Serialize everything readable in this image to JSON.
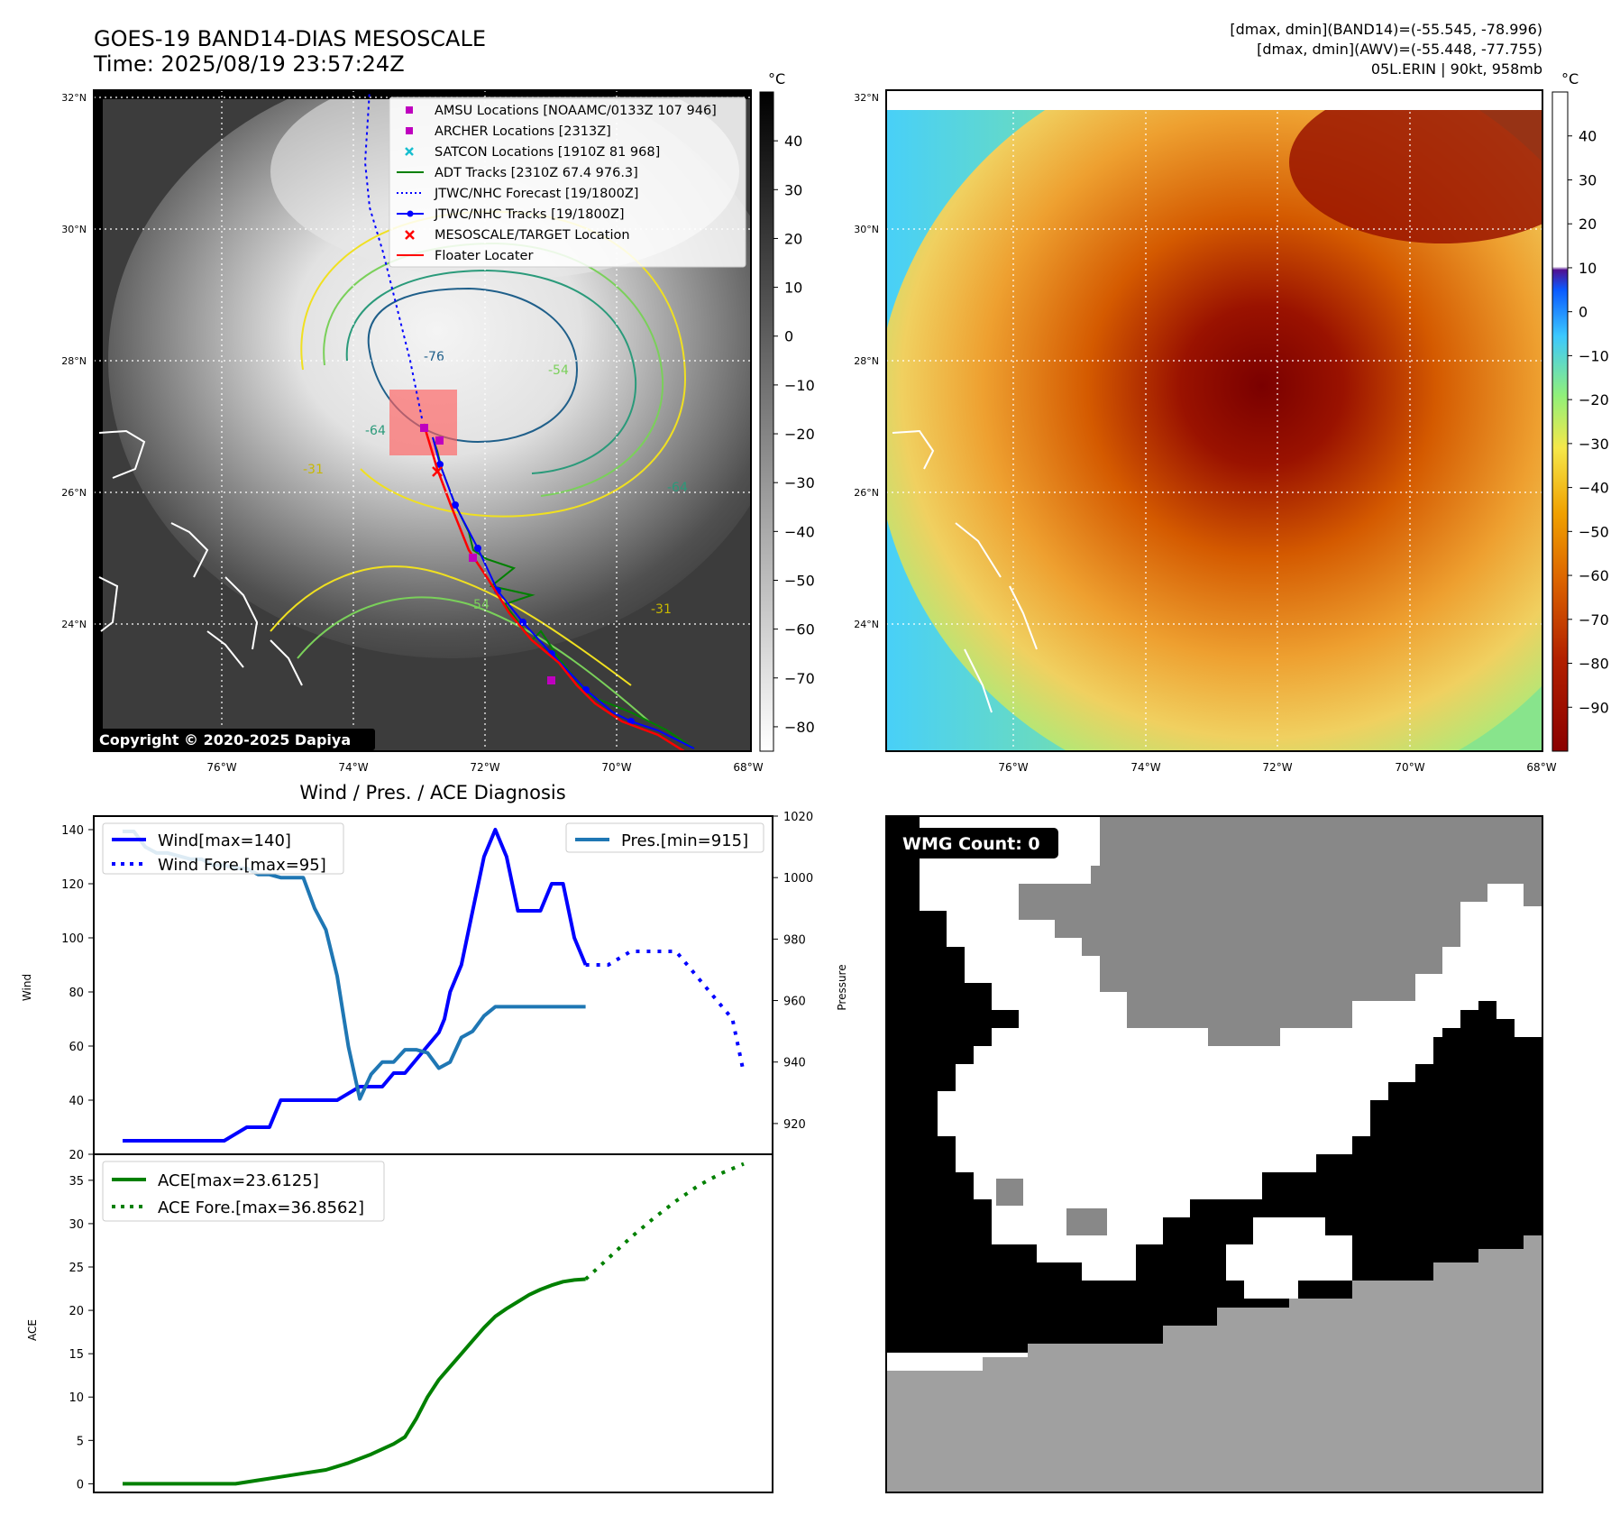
{
  "header": {
    "title_line1": "GOES-19 BAND14-DIAS MESOSCALE",
    "title_line2": "Time: 2025/08/19 23:57:24Z",
    "info_line1": "[dmax, dmin](BAND14)=(-55.545, -78.996)",
    "info_line2": "[dmax, dmin](AWV)=(-55.448, -77.755)",
    "info_line3": "05L.ERIN | 90kt, 958mb"
  },
  "map": {
    "lat_labels": [
      "32°N",
      "30°N",
      "28°N",
      "26°N",
      "24°N"
    ],
    "lon_labels": [
      "76°W",
      "74°W",
      "72°W",
      "70°W",
      "68°W"
    ],
    "copyright": "Copyright © 2020-2025 Dapiya",
    "contour_labels": [
      "-76",
      "-64",
      "-54",
      "-54",
      "-64",
      "-31",
      "-31",
      "-54",
      "-31"
    ],
    "legend": [
      {
        "label": "AMSU Locations [NOAAMC/0133Z 107 946]",
        "marker": "square",
        "color": "#bf00bf"
      },
      {
        "label": "ARCHER Locations [2313Z]",
        "marker": "square",
        "color": "#bf00bf"
      },
      {
        "label": "SATCON Locations [1910Z 81 968]",
        "marker": "x",
        "color": "#17becf"
      },
      {
        "label": "ADT Tracks [2310Z 67.4 976.3]",
        "marker": "line",
        "color": "#008000"
      },
      {
        "label": "JTWC/NHC Forecast [19/1800Z]",
        "marker": "dotted",
        "color": "#0000ff"
      },
      {
        "label": "JTWC/NHC Tracks [19/1800Z]",
        "marker": "line-dot",
        "color": "#0000ff"
      },
      {
        "label": "MESOSCALE/TARGET Location",
        "marker": "x",
        "color": "#ff0000"
      },
      {
        "label": "Floater Locater",
        "marker": "line",
        "color": "#ff0000"
      }
    ]
  },
  "colorbar_left": {
    "unit": "°C",
    "ticks": [
      "40",
      "30",
      "20",
      "10",
      "0",
      "−10",
      "−20",
      "−30",
      "−40",
      "−50",
      "−60",
      "−70",
      "−80"
    ]
  },
  "colorbar_right": {
    "unit": "°C",
    "ticks": [
      "40",
      "30",
      "20",
      "10",
      "0",
      "−10",
      "−20",
      "−30",
      "−40",
      "−50",
      "−60",
      "−70",
      "−80",
      "−90"
    ]
  },
  "wmg": {
    "label": "WMG Count: 0"
  },
  "chart_data": [
    {
      "type": "line",
      "title": "Wind / Pres. / ACE Diagnosis",
      "ylabel": "Wind",
      "ylabel_right": "Pressure",
      "ylim": [
        20,
        145
      ],
      "ylim_right": [
        910,
        1020
      ],
      "y_ticks": [
        "20",
        "40",
        "60",
        "80",
        "100",
        "120",
        "140"
      ],
      "y_ticks_right": [
        "920",
        "940",
        "960",
        "980",
        "1000",
        "1020"
      ],
      "legend_left": [
        "Wind[max=140]",
        "Wind Fore.[max=95]"
      ],
      "legend_right": [
        "Pres.[min=915]"
      ],
      "series": [
        {
          "name": "Wind[max=140]",
          "color": "#0000ff",
          "style": "solid",
          "axis": "left",
          "x": [
            0,
            9,
            11,
            13,
            13.5,
            14,
            16,
            17,
            19,
            21,
            22,
            23,
            24,
            25,
            26,
            27,
            28,
            28.5,
            29,
            30,
            31,
            32,
            33,
            34,
            35,
            36,
            37,
            38,
            39,
            40,
            41
          ],
          "values": [
            25,
            25,
            30,
            30,
            35,
            40,
            40,
            40,
            40,
            45,
            45,
            45,
            50,
            50,
            55,
            60,
            65,
            70,
            80,
            90,
            110,
            130,
            140,
            130,
            110,
            110,
            110,
            120,
            120,
            100,
            90
          ]
        },
        {
          "name": "Wind Fore.[max=95]",
          "color": "#0000ff",
          "style": "dotted",
          "axis": "left",
          "x": [
            41,
            43,
            45,
            47,
            49,
            50,
            51,
            52,
            53,
            54,
            55
          ],
          "values": [
            90,
            90,
            95,
            95,
            95,
            90,
            85,
            80,
            75,
            70,
            50
          ]
        },
        {
          "name": "Pres.[min=915]",
          "color": "#1f77b4",
          "style": "solid",
          "axis": "right",
          "x": [
            0,
            1,
            2,
            3,
            4,
            5,
            6,
            7,
            8,
            9,
            10,
            11,
            12,
            13,
            14,
            15,
            16,
            17,
            18,
            19,
            20,
            21,
            22,
            23,
            24,
            25,
            26,
            27,
            28,
            29,
            30,
            31,
            32,
            33,
            34,
            35,
            36,
            37,
            38,
            39,
            40,
            41
          ],
          "values": [
            1015,
            1015,
            1010,
            1008,
            1008,
            1007,
            1006,
            1006,
            1004,
            1004,
            1003,
            1003,
            1001,
            1001,
            1000,
            1000,
            1000,
            990,
            983,
            968,
            945,
            928,
            936,
            940,
            940,
            944,
            944,
            943,
            938,
            940,
            948,
            950,
            955,
            958,
            958,
            958,
            958,
            958,
            958,
            958,
            958,
            958
          ]
        }
      ]
    },
    {
      "type": "line",
      "ylabel": "ACE",
      "ylim": [
        -1,
        38
      ],
      "y_ticks": [
        "0",
        "5",
        "10",
        "15",
        "20",
        "25",
        "30",
        "35"
      ],
      "legend": [
        "ACE[max=23.6125]",
        "ACE Fore.[max=36.8562]"
      ],
      "series": [
        {
          "name": "ACE[max=23.6125]",
          "color": "#008000",
          "style": "solid",
          "x": [
            0,
            10,
            12,
            14,
            16,
            18,
            19,
            20,
            21,
            22,
            23,
            24,
            25,
            26,
            27,
            28,
            29,
            30,
            31,
            32,
            33,
            34,
            35,
            36,
            37,
            38,
            39,
            40,
            41
          ],
          "values": [
            0,
            0,
            0.4,
            0.8,
            1.2,
            1.6,
            2.0,
            2.4,
            2.9,
            3.4,
            4.0,
            4.6,
            5.4,
            7.5,
            10.0,
            12.0,
            13.5,
            15.0,
            16.5,
            18.0,
            19.3,
            20.2,
            21.0,
            21.8,
            22.4,
            22.9,
            23.3,
            23.5,
            23.6
          ]
        },
        {
          "name": "ACE Fore.[max=36.8562]",
          "color": "#008000",
          "style": "dotted",
          "x": [
            41,
            43,
            45,
            47,
            49,
            51,
            53,
            55
          ],
          "values": [
            23.6,
            26.0,
            28.4,
            30.6,
            32.6,
            34.4,
            35.8,
            36.9
          ]
        }
      ]
    }
  ]
}
